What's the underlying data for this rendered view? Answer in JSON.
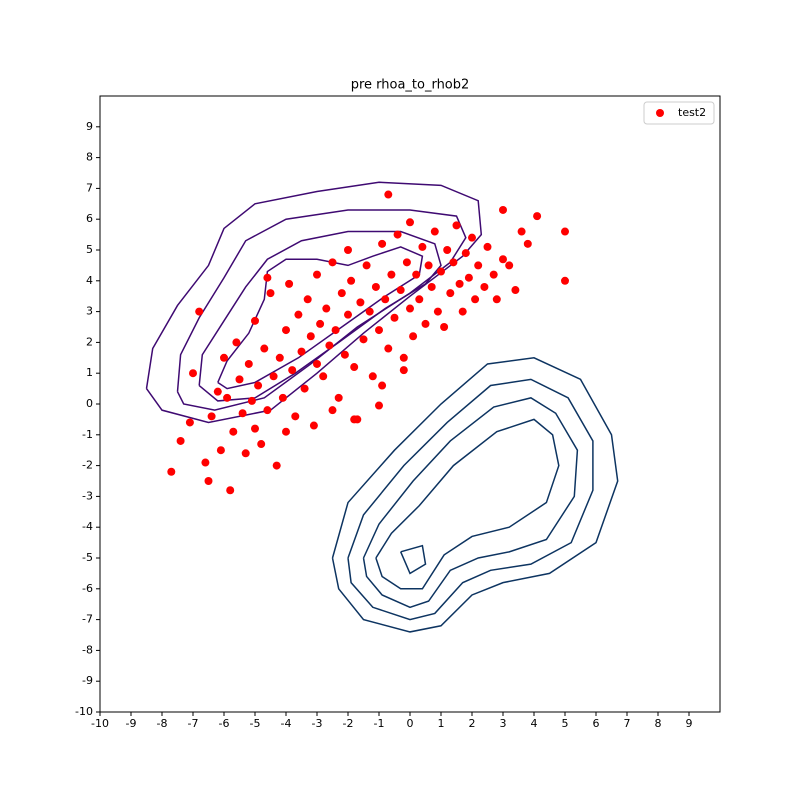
{
  "chart_data": {
    "type": "scatter",
    "title": "pre rhoa_to_rhob2",
    "xlim": [
      -10,
      10
    ],
    "ylim": [
      -10,
      10
    ],
    "xticks": [
      -10,
      -9,
      -8,
      -7,
      -6,
      -5,
      -4,
      -3,
      -2,
      -1,
      0,
      1,
      2,
      3,
      4,
      5,
      6,
      7,
      8,
      9
    ],
    "yticks": [
      -10,
      -9,
      -8,
      -7,
      -6,
      -5,
      -4,
      -3,
      -2,
      -1,
      0,
      1,
      2,
      3,
      4,
      5,
      6,
      7,
      8,
      9
    ],
    "legend": "upper right",
    "series": [
      {
        "name": "test2",
        "color": "#ff0000",
        "x": [
          -7.7,
          -7.4,
          -7.1,
          -7,
          -6.8,
          -6.6,
          -6.5,
          -6.4,
          -6.2,
          -6.1,
          -6,
          -5.9,
          -5.8,
          -5.7,
          -5.6,
          -5.5,
          -5.4,
          -5.3,
          -5.2,
          -5.1,
          -5,
          -5,
          -4.9,
          -4.8,
          -4.7,
          -4.6,
          -4.5,
          -4.4,
          -4.3,
          -4.2,
          -4.1,
          -4,
          -4,
          -3.9,
          -3.8,
          -3.7,
          -3.6,
          -3.5,
          -3.4,
          -3.3,
          -3.2,
          -3.1,
          -3,
          -3,
          -2.9,
          -2.8,
          -2.7,
          -2.6,
          -2.5,
          -2.4,
          -2.3,
          -2.2,
          -2.1,
          -2,
          -2,
          -1.9,
          -1.8,
          -1.7,
          -1.6,
          -1.5,
          -1.4,
          -1.3,
          -1.2,
          -1.1,
          -1,
          -1,
          -0.9,
          -0.8,
          -0.7,
          -0.7,
          -0.6,
          -0.5,
          -0.4,
          -0.3,
          -0.2,
          -0.1,
          0,
          0,
          0.1,
          0.2,
          0.3,
          0.4,
          0.5,
          0.6,
          0.7,
          0.8,
          0.9,
          1,
          1.1,
          1.2,
          1.3,
          1.4,
          1.5,
          1.6,
          1.7,
          1.8,
          1.9,
          2,
          2.1,
          2.2,
          2.4,
          2.5,
          2.7,
          2.8,
          3,
          3,
          3.2,
          3.4,
          3.6,
          4.1,
          3.8,
          5,
          5,
          -1.8,
          -2.5,
          -0.9,
          -0.2,
          -4.6
        ],
        "y": [
          -2.2,
          -1.2,
          -0.6,
          1,
          3,
          -1.9,
          -2.5,
          -0.4,
          0.4,
          -1.5,
          1.5,
          0.2,
          -2.8,
          -0.9,
          2,
          0.8,
          -0.3,
          -1.6,
          1.3,
          0.1,
          -0.8,
          2.7,
          0.6,
          -1.3,
          1.8,
          -0.2,
          3.6,
          0.9,
          -2,
          1.5,
          0.2,
          2.4,
          -0.9,
          3.9,
          1.1,
          -0.4,
          2.9,
          1.7,
          0.5,
          3.4,
          2.2,
          -0.7,
          1.3,
          4.2,
          2.6,
          0.9,
          3.1,
          1.9,
          4.6,
          2.4,
          0.2,
          3.6,
          1.6,
          2.9,
          5,
          4,
          1.2,
          -0.5,
          3.3,
          2.1,
          4.5,
          3,
          0.9,
          3.8,
          2.4,
          -0.05,
          5.2,
          3.4,
          6.8,
          1.8,
          4.2,
          2.8,
          5.5,
          3.7,
          1.5,
          4.6,
          3.1,
          5.9,
          2.2,
          4.2,
          3.4,
          5.1,
          2.6,
          4.5,
          3.8,
          5.6,
          3,
          4.3,
          2.5,
          5,
          3.6,
          4.6,
          5.8,
          3.9,
          3,
          4.9,
          4.1,
          5.4,
          3.4,
          4.5,
          3.8,
          5.1,
          4.2,
          3.4,
          6.3,
          4.7,
          4.5,
          3.7,
          5.6,
          6.1,
          5.2,
          5.6,
          4,
          -0.5,
          -0.2,
          0.6,
          1.1,
          4.1
        ]
      }
    ],
    "contours": [
      {
        "color": "#3f0a72",
        "x": [
          -8.5,
          -8.3,
          -7.5,
          -6.5,
          -6,
          -5,
          -3,
          -1,
          1,
          2.2,
          2.3,
          1.7,
          0,
          -1.5,
          -3,
          -4.5,
          -6.5,
          -8,
          -8.5
        ],
        "y": [
          0.5,
          1.8,
          3.2,
          4.5,
          5.7,
          6.5,
          6.9,
          7.2,
          7.1,
          6.6,
          5.5,
          4.8,
          3.5,
          2.3,
          1,
          -0.2,
          -0.6,
          -0.2,
          0.5
        ]
      },
      {
        "color": "#3f0a72",
        "x": [
          -7.5,
          -7.4,
          -6.8,
          -6,
          -5.3,
          -4,
          -2,
          0,
          1.5,
          1.8,
          1.3,
          0,
          -1.7,
          -3.2,
          -4.7,
          -6.3,
          -7.3,
          -7.5
        ],
        "y": [
          0.4,
          1.6,
          2.8,
          4.1,
          5.3,
          6,
          6.3,
          6.3,
          6.1,
          5.4,
          4.6,
          3.6,
          2.5,
          1.3,
          0.2,
          -0.2,
          0,
          0.4
        ]
      },
      {
        "color": "#3f0a72",
        "x": [
          -6.8,
          -6.7,
          -6,
          -5.3,
          -4.6,
          -3.5,
          -2,
          -0.3,
          0.8,
          1,
          0.5,
          -0.8,
          -2.3,
          -3.7,
          -5,
          -6.2,
          -6.8
        ],
        "y": [
          0.6,
          1.6,
          2.7,
          3.8,
          4.7,
          5.3,
          5.6,
          5.6,
          5.2,
          4.5,
          3.9,
          3.1,
          2,
          1,
          0.2,
          0.1,
          0.6
        ]
      },
      {
        "color": "#3f0a72",
        "x": [
          -6.2,
          -5.9,
          -5.2,
          -4.7,
          -4.6,
          -4,
          -3,
          -2,
          -1.2,
          -0.3,
          0.4,
          0.3,
          -0.8,
          -2.2,
          -3.6,
          -5,
          -5.9,
          -6.2
        ],
        "y": [
          0.7,
          1.4,
          2.3,
          3.4,
          4.3,
          4.7,
          4.7,
          4.5,
          4.8,
          5.1,
          4.8,
          4.2,
          3.5,
          2.5,
          1.5,
          0.7,
          0.5,
          0.7
        ]
      },
      {
        "color": "#0d3461",
        "x": [
          -2.5,
          -2,
          -0.5,
          1,
          2.5,
          4,
          5.5,
          6.5,
          6.7,
          6,
          4.5,
          3,
          2,
          1,
          0,
          -1.5,
          -2.3,
          -2.5
        ],
        "y": [
          -5,
          -3.2,
          -1.5,
          0,
          1.3,
          1.5,
          0.8,
          -1,
          -2.5,
          -4.5,
          -5.5,
          -5.8,
          -6.2,
          -7.2,
          -7.4,
          -7,
          -6,
          -5
        ]
      },
      {
        "color": "#0d3461",
        "x": [
          -2,
          -1.5,
          -0.2,
          1.2,
          2.6,
          3.9,
          5.1,
          5.9,
          5.9,
          5.2,
          3.9,
          2.6,
          1.7,
          0.8,
          0,
          -1.2,
          -1.9,
          -2
        ],
        "y": [
          -5,
          -3.6,
          -2,
          -0.6,
          0.6,
          0.8,
          0.2,
          -1.2,
          -2.8,
          -4.5,
          -5.2,
          -5.4,
          -5.8,
          -6.8,
          -7,
          -6.6,
          -5.8,
          -5
        ]
      },
      {
        "color": "#0d3461",
        "x": [
          -1.5,
          -1,
          0.1,
          1.3,
          2.7,
          3.9,
          4.7,
          5.4,
          5.3,
          4.4,
          3.2,
          2.2,
          1.3,
          0.6,
          0,
          -0.9,
          -1.4,
          -1.5
        ],
        "y": [
          -5,
          -3.9,
          -2.5,
          -1.2,
          -0.1,
          0.2,
          -0.3,
          -1.5,
          -3,
          -4.4,
          -4.8,
          -5,
          -5.4,
          -6.4,
          -6.6,
          -6.2,
          -5.6,
          -5
        ]
      },
      {
        "color": "#0d3461",
        "x": [
          -1.1,
          -0.6,
          0.3,
          1.4,
          2.8,
          4,
          4.6,
          4.8,
          4.4,
          3.2,
          2,
          1.1,
          0.4,
          -0.3,
          -0.9,
          -1.1
        ],
        "y": [
          -5,
          -4.2,
          -3.3,
          -2,
          -0.9,
          -0.5,
          -1,
          -2,
          -3.2,
          -4,
          -4.3,
          -4.9,
          -6,
          -6,
          -5.6,
          -5
        ]
      },
      {
        "color": "#0d3461",
        "x": [
          -0.3,
          0.4,
          0.5,
          0,
          -0.3
        ],
        "y": [
          -4.8,
          -4.6,
          -5.2,
          -5.5,
          -4.8
        ]
      }
    ]
  }
}
